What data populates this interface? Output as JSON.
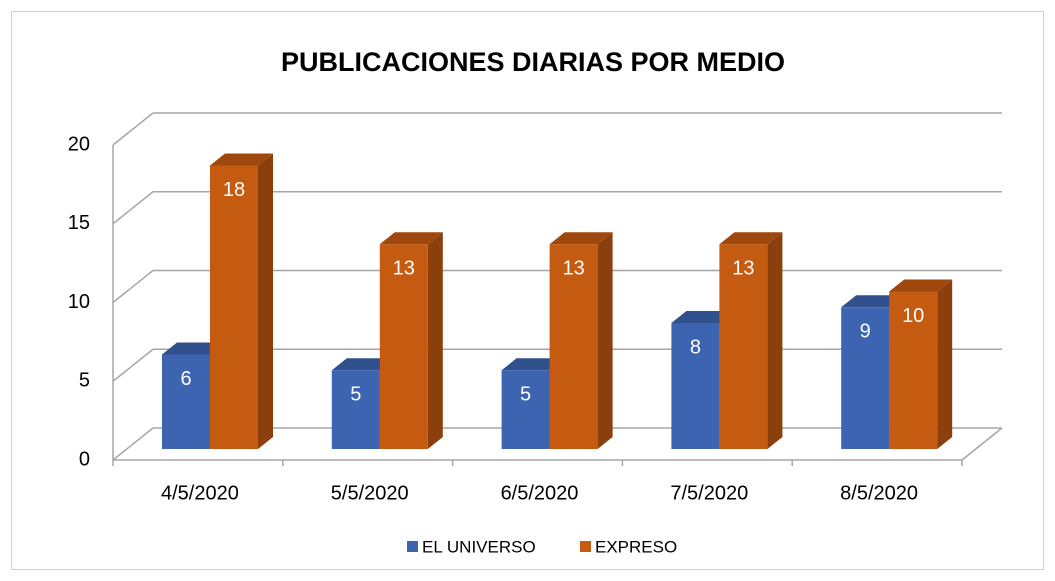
{
  "chart_data": {
    "type": "bar3d",
    "title": "PUBLICACIONES DIARIAS POR MEDIO",
    "categories": [
      "4/5/2020",
      "5/5/2020",
      "6/5/2020",
      "7/5/2020",
      "8/5/2020"
    ],
    "series": [
      {
        "name": "EL UNIVERSO",
        "color": "#3c64b1",
        "values": [
          6,
          5,
          5,
          8,
          9
        ]
      },
      {
        "name": "EXPRESO",
        "color": "#c55a11",
        "values": [
          18,
          13,
          13,
          13,
          10
        ]
      }
    ],
    "ylim": [
      0,
      20
    ],
    "yticks": [
      0,
      5,
      10,
      15,
      20
    ],
    "grid": true,
    "legend": "bottom"
  }
}
